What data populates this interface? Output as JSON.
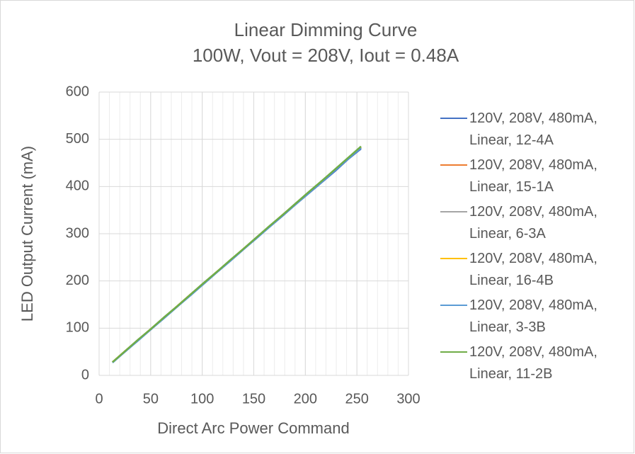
{
  "chart_data": {
    "type": "line",
    "title": "Linear Dimming Curve",
    "subtitle": "100W, Vout = 208V, Iout = 0.48A",
    "x_label": "Direct Arc Power Command",
    "y_label": "LED Output Current (mA)",
    "x": [
      13,
      25,
      38,
      50,
      63,
      76,
      89,
      101,
      114,
      127,
      140,
      152,
      165,
      178,
      190,
      203,
      216,
      229,
      241,
      254
    ],
    "series": [
      {
        "name": "120V, 208V, 480mA, Linear, 12-4A",
        "color": "#4472c4",
        "values": [
          28,
          50,
          75,
          97,
          122,
          146,
          171,
          193,
          218,
          242,
          267,
          290,
          314,
          338,
          361,
          385,
          409,
          433,
          457,
          480
        ]
      },
      {
        "name": "120V, 208V, 480mA, Linear, 15-1A",
        "color": "#ed7d31",
        "values": [
          28,
          51,
          75,
          98,
          122,
          147,
          172,
          194,
          219,
          243,
          268,
          290,
          315,
          340,
          362,
          387,
          411,
          436,
          459,
          483
        ]
      },
      {
        "name": "120V, 208V, 480mA, Linear, 6-3A",
        "color": "#a5a5a5",
        "values": [
          28,
          51,
          76,
          98,
          123,
          147,
          172,
          195,
          219,
          243,
          268,
          291,
          315,
          340,
          363,
          387,
          412,
          436,
          459,
          483
        ]
      },
      {
        "name": "120V, 208V, 480mA, Linear, 16-4B",
        "color": "#ffc000",
        "values": [
          28,
          51,
          75,
          98,
          122,
          147,
          172,
          194,
          219,
          243,
          268,
          290,
          315,
          340,
          362,
          387,
          411,
          436,
          459,
          483
        ]
      },
      {
        "name": "120V, 208V, 480mA, Linear, 3-3B",
        "color": "#5b9bd5",
        "values": [
          27,
          50,
          74,
          97,
          121,
          146,
          170,
          193,
          218,
          242,
          267,
          289,
          314,
          339,
          361,
          386,
          410,
          435,
          458,
          482
        ]
      },
      {
        "name": "120V, 208V, 480mA, Linear, 11-2B",
        "color": "#70ad47",
        "values": [
          28,
          51,
          76,
          98,
          123,
          147,
          172,
          195,
          219,
          244,
          268,
          291,
          316,
          340,
          363,
          388,
          412,
          437,
          460,
          485
        ]
      }
    ],
    "xlim": [
      0,
      300
    ],
    "xticks": [
      0,
      50,
      100,
      150,
      200,
      250,
      300
    ],
    "x_minor_step": 10,
    "ylim": [
      0,
      600
    ],
    "yticks": [
      0,
      100,
      200,
      300,
      400,
      500,
      600
    ],
    "grid": true,
    "legend": "right"
  }
}
